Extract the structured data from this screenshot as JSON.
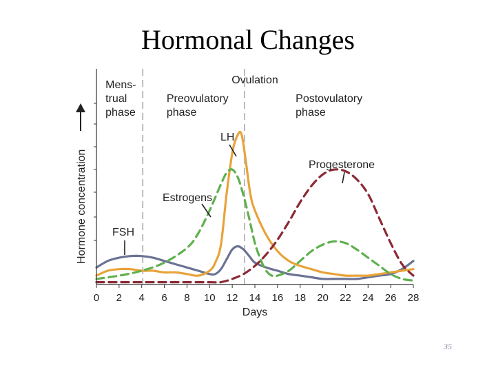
{
  "slide": {
    "title": "Hormonal Changes",
    "page_number": "35"
  },
  "chart_data": {
    "type": "line",
    "xlabel": "Days",
    "ylabel": "Hormone concentration",
    "xlim": [
      0,
      28
    ],
    "x_ticks": [
      0,
      2,
      4,
      6,
      8,
      10,
      12,
      14,
      16,
      18,
      20,
      22,
      24,
      26,
      28
    ],
    "ylim": [
      0,
      100
    ],
    "grid": false,
    "phase_dividers": [
      5,
      14
    ],
    "phases": [
      {
        "label": [
          "Mens-",
          "trual",
          "phase"
        ],
        "anchor_day": 0.8
      },
      {
        "label": [
          "Preovulatory",
          "phase"
        ],
        "anchor_day": 6.2
      },
      {
        "label": [
          "Ovulation"
        ],
        "anchor_day": 14
      },
      {
        "label": [
          "Postovulatory",
          "phase"
        ],
        "anchor_day": 17.6
      }
    ],
    "series": [
      {
        "name": "FSH",
        "color": "#6b7394",
        "dash": false,
        "x": [
          0,
          1,
          2,
          3,
          4,
          5,
          6,
          7,
          8,
          9,
          10,
          10.5,
          11,
          11.5,
          12,
          12.5,
          13,
          13.5,
          14,
          15,
          16,
          17,
          18,
          19,
          20,
          21,
          22,
          23,
          24,
          25,
          26,
          27,
          28
        ],
        "y": [
          10,
          14,
          16,
          17,
          17,
          16,
          14,
          12,
          10,
          8,
          6,
          6,
          9,
          15,
          21,
          23,
          21,
          17,
          13,
          10,
          8,
          6,
          5,
          4,
          3,
          3,
          3,
          3,
          4,
          5,
          6,
          9,
          14
        ]
      },
      {
        "name": "LH",
        "color": "#e8a33a",
        "dash": false,
        "x": [
          0,
          1,
          2,
          3,
          4,
          5,
          6,
          7,
          8,
          9,
          10,
          10.5,
          11,
          11.5,
          12,
          12.4,
          12.8,
          13.2,
          13.6,
          14,
          15,
          16,
          17,
          18,
          19,
          20,
          21,
          22,
          23,
          24,
          25,
          26,
          27,
          28
        ],
        "y": [
          5,
          8,
          9,
          9,
          8,
          8,
          7,
          7,
          6,
          5,
          8,
          13,
          24,
          55,
          80,
          90,
          92,
          75,
          55,
          45,
          30,
          20,
          14,
          11,
          9,
          7,
          6,
          5,
          5,
          5,
          6,
          7,
          8,
          9
        ]
      },
      {
        "name": "Estrogens",
        "color": "#5fb04f",
        "dash": true,
        "x": [
          0,
          2,
          4,
          6,
          8,
          9,
          10,
          11,
          11.5,
          12,
          12.5,
          13,
          13.5,
          14,
          14.5,
          15,
          15.5,
          16,
          17,
          18,
          19,
          20,
          21,
          22,
          23,
          24,
          25,
          26,
          27,
          28
        ],
        "y": [
          3,
          5,
          8,
          13,
          22,
          31,
          45,
          61,
          68,
          70,
          65,
          54,
          40,
          25,
          15,
          8,
          5,
          5,
          8,
          14,
          20,
          24,
          26,
          25,
          21,
          16,
          11,
          6,
          3,
          2
        ]
      },
      {
        "name": "Progesterone",
        "color": "#8b2a35",
        "dash": true,
        "x": [
          0,
          4,
          8,
          10,
          11,
          12,
          13,
          14,
          15,
          16,
          17,
          18,
          19,
          20,
          21,
          22,
          23,
          24,
          25,
          26,
          27,
          28
        ],
        "y": [
          1,
          1,
          1,
          1,
          1,
          3,
          6,
          11,
          18,
          27,
          38,
          50,
          60,
          67,
          70,
          69,
          64,
          55,
          40,
          25,
          12,
          5
        ]
      }
    ],
    "annotations": [
      {
        "text": "FSH",
        "series": "FSH",
        "day": 2.3
      },
      {
        "text": "Estrogens",
        "series": "Estrogens",
        "day": 10.0
      },
      {
        "text": "LH",
        "series": "LH",
        "day": 12.8
      },
      {
        "text": "Progesterone",
        "series": "Progesterone",
        "day": 21.5
      }
    ]
  }
}
